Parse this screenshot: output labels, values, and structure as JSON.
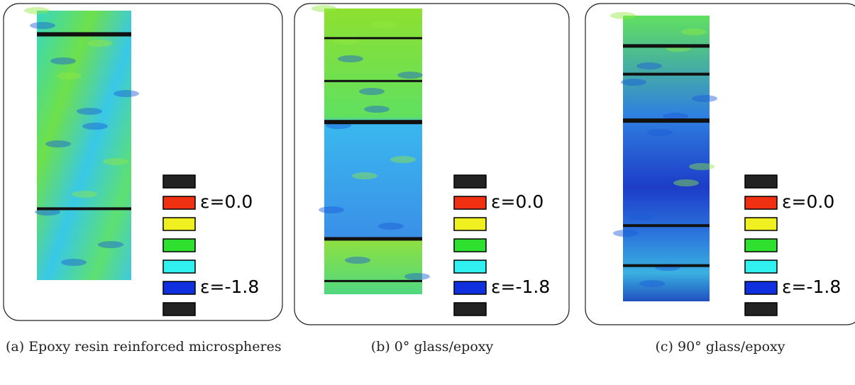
{
  "panels": [
    {
      "legend": {
        "top_label": "ε=0.0",
        "bottom_label": "ε=-1.8"
      },
      "caption": "(a) Epoxy resin reinforced microspheres"
    },
    {
      "legend": {
        "top_label": "ε=0.0",
        "bottom_label": "ε=-1.8"
      },
      "caption": "(b) 0° glass/epoxy"
    },
    {
      "legend": {
        "top_label": "ε=0.0",
        "bottom_label": "ε=-1.8"
      },
      "caption": "(c) 90° glass/epoxy"
    }
  ]
}
